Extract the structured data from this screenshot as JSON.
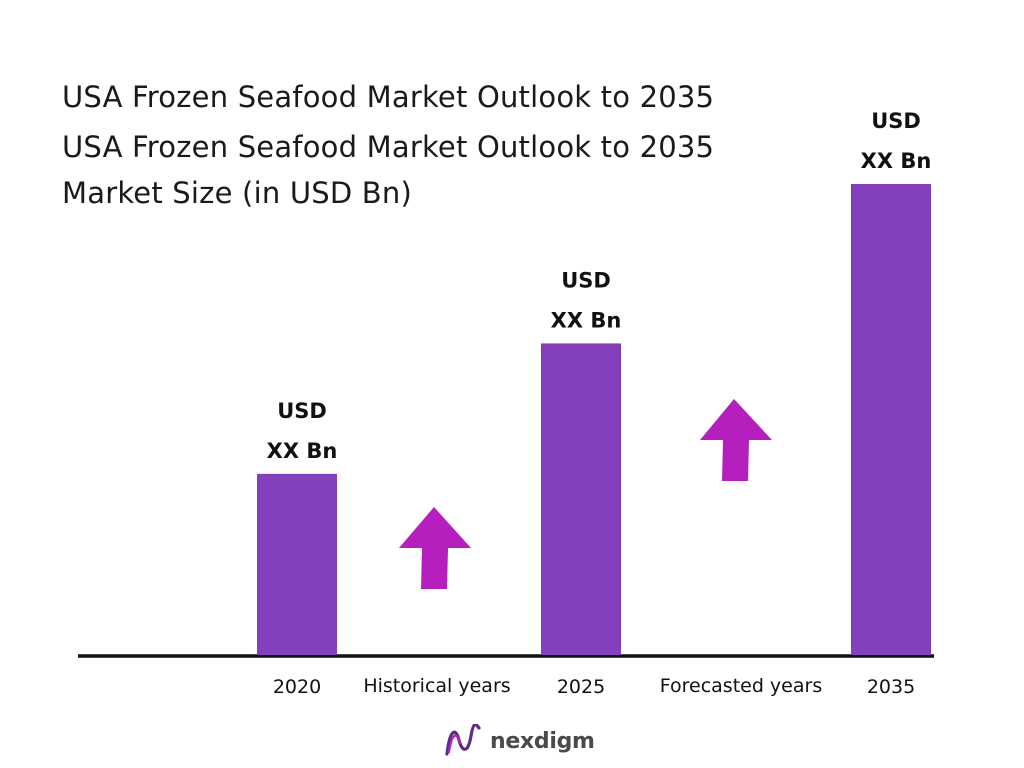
{
  "header": {
    "title_line1": "USA Frozen Seafood Market Outlook to 2035",
    "title_line2": "USA Frozen Seafood Market Outlook to 2035",
    "title_line3": "Market Size (in USD Bn)"
  },
  "chart_data": {
    "type": "bar",
    "categories": [
      "2020",
      "2025",
      "2035"
    ],
    "values": [
      1.0,
      1.72,
      2.6
    ],
    "value_labels": [
      [
        "USD",
        "XX Bn"
      ],
      [
        "USD",
        "XX Bn"
      ],
      [
        "USD",
        "XX Bn"
      ]
    ],
    "segment_labels": [
      "Historical years",
      "Forecasted years"
    ],
    "bar_color": "#8340BA",
    "arrow_color": "#B51FBE",
    "ylim": [
      0,
      2.6
    ],
    "grid": false
  },
  "brand": {
    "name": "nexdigm",
    "text_color": "#4a4a4a",
    "icon_color": "#5B2C83"
  }
}
